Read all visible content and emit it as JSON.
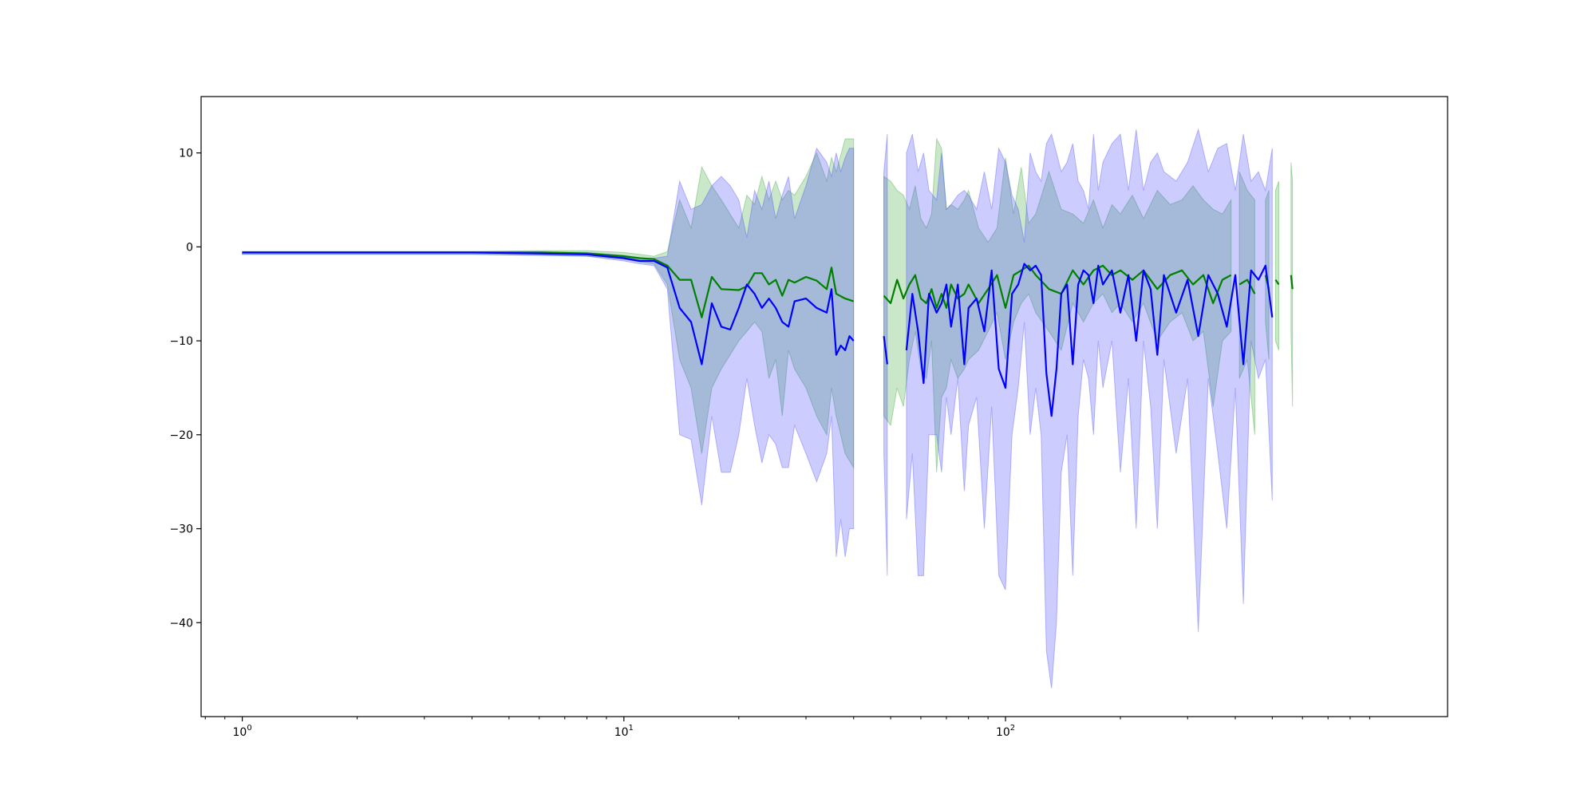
{
  "chart_data": {
    "type": "line",
    "title": "",
    "xlabel": "",
    "ylabel": "",
    "x_scale": "log",
    "xlim": [
      0.78,
      1440
    ],
    "ylim": [
      -50,
      16
    ],
    "grid": false,
    "legend": "none",
    "x_ticks": [
      {
        "value": 1,
        "base": "10",
        "exp": "0"
      },
      {
        "value": 10,
        "base": "10",
        "exp": "1"
      },
      {
        "value": 100,
        "base": "10",
        "exp": "2"
      }
    ],
    "y_ticks": [
      10,
      0,
      -10,
      -20,
      -30,
      -40
    ],
    "y_tick_labels": [
      "10",
      "0",
      "−10",
      "−20",
      "−30",
      "−40"
    ],
    "series": [
      {
        "color": "#008000",
        "fill_color": "#2ca02c",
        "fill_opacity": 0.25,
        "segments": [
          [
            [
              1,
              -0.6,
              -0.8,
              -0.5
            ],
            [
              2,
              -0.6,
              -0.8,
              -0.5
            ],
            [
              4,
              -0.6,
              -0.8,
              -0.5
            ],
            [
              6,
              -0.6,
              -0.9,
              -0.4
            ],
            [
              8,
              -0.7,
              -1.0,
              -0.4
            ],
            [
              10,
              -1.0,
              -1.3,
              -0.6
            ],
            [
              11,
              -1.2,
              -1.6,
              -0.8
            ],
            [
              12,
              -1.3,
              -1.8,
              -1.0
            ],
            [
              13,
              -2.0,
              -4.0,
              -0.5
            ],
            [
              14,
              -3.5,
              -12.0,
              5.0
            ],
            [
              15,
              -3.5,
              -15.0,
              2.0
            ],
            [
              16,
              -7.5,
              -22.0,
              8.5
            ],
            [
              17,
              -3.2,
              -15.0,
              6.5
            ],
            [
              18,
              -4.5,
              -13.0,
              5.0
            ],
            [
              20,
              -4.6,
              -10.0,
              2.0
            ],
            [
              21,
              -4.2,
              -9.0,
              5.5
            ],
            [
              22,
              -2.8,
              -8.0,
              4.5
            ],
            [
              23,
              -2.8,
              -9.0,
              7.5
            ],
            [
              24,
              -4.0,
              -14.0,
              5.0
            ],
            [
              25,
              -3.5,
              -12.0,
              7.0
            ],
            [
              26,
              -5.2,
              -18.0,
              5.0
            ],
            [
              27,
              -3.5,
              -11.0,
              6.0
            ],
            [
              28,
              -3.8,
              -13.0,
              5.5
            ],
            [
              30,
              -3.2,
              -15.0,
              7.5
            ],
            [
              32,
              -3.6,
              -18.0,
              10.0
            ],
            [
              34,
              -4.5,
              -20.0,
              7.0
            ],
            [
              35,
              -2.2,
              -15.0,
              9.5
            ],
            [
              36,
              -5.0,
              -18.0,
              8.0
            ],
            [
              38,
              -5.5,
              -22.0,
              11.5
            ],
            [
              40,
              -5.8,
              -23.5,
              11.5
            ]
          ],
          [
            [
              48,
              -5.2,
              -18.0,
              7.5
            ],
            [
              50,
              -6.0,
              -19.0,
              7.0
            ],
            [
              52,
              -3.5,
              -15.0,
              6.0
            ],
            [
              54,
              -5.5,
              -17.0,
              5.5
            ],
            [
              56,
              -4.0,
              -12.0,
              4.0
            ],
            [
              58,
              -3.0,
              -9.0,
              6.5
            ],
            [
              60,
              -5.5,
              -13.0,
              3.0
            ],
            [
              62,
              -6.0,
              -14.0,
              2.0
            ],
            [
              64,
              -4.5,
              -10.0,
              3.5
            ],
            [
              66,
              -6.5,
              -24.0,
              11.5
            ],
            [
              68,
              -5.0,
              -16.0,
              10.5
            ],
            [
              70,
              -6.5,
              -15.0,
              4.0
            ],
            [
              72,
              -4.0,
              -12.0,
              4.5
            ],
            [
              75,
              -5.5,
              -14.0,
              4.0
            ],
            [
              78,
              -5.0,
              -13.0,
              5.0
            ],
            [
              80,
              -4.0,
              -12.0,
              6.0
            ],
            [
              85,
              -6.0,
              -11.0,
              2.0
            ],
            [
              90,
              -4.5,
              -9.0,
              0.5
            ],
            [
              95,
              -3.0,
              -7.0,
              2.0
            ],
            [
              100,
              -6.5,
              -12.0,
              9.5
            ],
            [
              105,
              -3.0,
              -8.0,
              3.5
            ],
            [
              110,
              -2.5,
              -6.0,
              8.5
            ],
            [
              115,
              -2.0,
              -5.0,
              2.5
            ],
            [
              120,
              -3.0,
              -7.0,
              3.5
            ],
            [
              130,
              -4.5,
              -9.0,
              8.0
            ],
            [
              140,
              -5.0,
              -11.0,
              4.0
            ],
            [
              150,
              -2.5,
              -6.0,
              3.5
            ],
            [
              160,
              -4.0,
              -8.0,
              2.5
            ],
            [
              170,
              -2.5,
              -6.0,
              5.0
            ],
            [
              180,
              -2.0,
              -5.0,
              2.0
            ],
            [
              190,
              -3.0,
              -7.0,
              4.5
            ],
            [
              200,
              -2.5,
              -6.0,
              3.5
            ],
            [
              215,
              -3.5,
              -8.0,
              5.5
            ],
            [
              230,
              -2.5,
              -6.0,
              3.0
            ],
            [
              250,
              -4.5,
              -10.0,
              6.0
            ],
            [
              270,
              -3.0,
              -8.0,
              4.5
            ],
            [
              290,
              -2.5,
              -7.0,
              5.0
            ],
            [
              310,
              -4.0,
              -10.0,
              6.5
            ],
            [
              330,
              -3.0,
              -9.0,
              5.0
            ],
            [
              350,
              -6.0,
              -17.0,
              4.0
            ],
            [
              370,
              -3.5,
              -10.0,
              3.5
            ],
            [
              390,
              -3.0,
              -9.0,
              5.0
            ]
          ],
          [
            [
              410,
              -4.0,
              -14.0,
              8.0
            ],
            [
              430,
              -3.5,
              -12.0,
              6.0
            ],
            [
              450,
              -5.0,
              -20.0,
              5.0
            ]
          ],
          [
            [
              480,
              -3.0,
              -8.0,
              5.0
            ],
            [
              490,
              -4.5,
              -12.0,
              6.0
            ]
          ],
          [
            [
              510,
              -3.5,
              -10.0,
              6.0
            ],
            [
              520,
              -4.0,
              -11.0,
              7.0
            ]
          ],
          [
            [
              560,
              -3.0,
              -9.0,
              9.0
            ],
            [
              565,
              -4.5,
              -17.0,
              7.0
            ]
          ]
        ]
      },
      {
        "color": "#0000ff",
        "fill_color": "#4444ff",
        "fill_opacity": 0.27,
        "segments": [
          [
            [
              1,
              -0.6,
              -0.8,
              -0.5
            ],
            [
              2,
              -0.6,
              -0.8,
              -0.5
            ],
            [
              4,
              -0.6,
              -0.8,
              -0.5
            ],
            [
              6,
              -0.7,
              -0.9,
              -0.5
            ],
            [
              8,
              -0.8,
              -1.0,
              -0.6
            ],
            [
              10,
              -1.2,
              -1.5,
              -0.9
            ],
            [
              11,
              -1.5,
              -1.8,
              -1.2
            ],
            [
              12,
              -1.5,
              -2.0,
              -1.2
            ],
            [
              13,
              -2.2,
              -4.5,
              -1.0
            ],
            [
              14,
              -6.5,
              -20.0,
              7.0
            ],
            [
              15,
              -8.0,
              -20.5,
              4.0
            ],
            [
              16,
              -12.5,
              -27.5,
              4.5
            ],
            [
              17,
              -6.0,
              -18.0,
              6.5
            ],
            [
              18,
              -8.5,
              -24.0,
              7.5
            ],
            [
              19,
              -8.8,
              -24.0,
              6.5
            ],
            [
              20,
              -6.5,
              -20.0,
              5.0
            ],
            [
              21,
              -4.0,
              -14.0,
              1.0
            ],
            [
              22,
              -5.0,
              -19.0,
              6.0
            ],
            [
              23,
              -6.5,
              -23.0,
              4.0
            ],
            [
              24,
              -5.5,
              -20.0,
              7.0
            ],
            [
              25,
              -6.5,
              -21.0,
              3.0
            ],
            [
              26,
              -8.0,
              -23.5,
              5.5
            ],
            [
              27,
              -8.5,
              -23.5,
              7.5
            ],
            [
              28,
              -5.8,
              -19.0,
              3.0
            ],
            [
              30,
              -5.5,
              -22.0,
              6.5
            ],
            [
              32,
              -6.5,
              -25.0,
              10.5
            ],
            [
              34,
              -7.0,
              -22.0,
              9.0
            ],
            [
              35,
              -4.5,
              -18.0,
              7.5
            ],
            [
              36,
              -11.5,
              -33.0,
              10.0
            ],
            [
              37,
              -10.5,
              -29.0,
              8.0
            ],
            [
              38,
              -11.0,
              -33.0,
              9.5
            ],
            [
              39,
              -9.5,
              -30.0,
              10.5
            ],
            [
              40,
              -10.0,
              -30.0,
              10.5
            ]
          ],
          [
            [
              48,
              -9.5,
              -22.0,
              8.0
            ],
            [
              49,
              -12.5,
              -35.0,
              12.0
            ]
          ],
          [
            [
              55,
              -11.0,
              -29.0,
              10.0
            ],
            [
              57,
              -5.0,
              -22.0,
              12.0
            ],
            [
              59,
              -9.0,
              -35.0,
              8.0
            ],
            [
              61,
              -14.5,
              -35.0,
              10.0
            ],
            [
              63,
              -5.0,
              -20.0,
              6.0
            ],
            [
              66,
              -7.0,
              -20.0,
              5.0
            ],
            [
              68,
              -6.0,
              -24.0,
              10.0
            ],
            [
              70,
              -4.0,
              -16.0,
              4.0
            ],
            [
              72,
              -8.5,
              -20.0,
              4.5
            ],
            [
              75,
              -4.0,
              -14.0,
              5.5
            ],
            [
              78,
              -12.5,
              -26.0,
              6.0
            ],
            [
              80,
              -6.5,
              -19.0,
              5.5
            ],
            [
              84,
              -5.5,
              -16.0,
              4.0
            ],
            [
              88,
              -9.0,
              -30.0,
              8.0
            ],
            [
              92,
              -2.5,
              -17.0,
              4.0
            ],
            [
              96,
              -13.0,
              -35.0,
              10.5
            ],
            [
              100,
              -15.0,
              -36.5,
              9.0
            ],
            [
              104,
              -5.0,
              -20.0,
              5.5
            ],
            [
              108,
              -4.0,
              -15.0,
              4.0
            ],
            [
              112,
              -1.8,
              -8.0,
              0.5
            ],
            [
              116,
              -2.5,
              -20.0,
              10.0
            ],
            [
              120,
              -2.0,
              -15.0,
              8.0
            ],
            [
              124,
              -3.0,
              -20.0,
              7.0
            ],
            [
              128,
              -13.5,
              -43.0,
              11.0
            ],
            [
              132,
              -18.0,
              -47.0,
              12.0
            ],
            [
              136,
              -13.0,
              -40.0,
              10.0
            ],
            [
              140,
              -5.0,
              -24.0,
              8.0
            ],
            [
              145,
              -4.0,
              -20.0,
              9.0
            ],
            [
              150,
              -12.5,
              -35.0,
              11.0
            ],
            [
              155,
              -4.0,
              -18.0,
              7.0
            ],
            [
              160,
              -2.5,
              -12.0,
              6.0
            ],
            [
              165,
              -3.0,
              -14.0,
              4.0
            ],
            [
              170,
              -6.0,
              -20.0,
              12.0
            ],
            [
              175,
              -2.0,
              -10.0,
              6.0
            ],
            [
              180,
              -4.0,
              -15.0,
              9.0
            ],
            [
              190,
              -2.5,
              -10.0,
              11.0
            ],
            [
              200,
              -7.0,
              -24.0,
              12.0
            ],
            [
              210,
              -3.0,
              -14.0,
              6.0
            ],
            [
              220,
              -10.0,
              -30.0,
              12.5
            ],
            [
              230,
              -2.5,
              -10.0,
              6.0
            ],
            [
              240,
              -4.5,
              -17.0,
              9.0
            ],
            [
              250,
              -11.5,
              -30.0,
              10.0
            ],
            [
              260,
              -3.0,
              -12.0,
              8.0
            ],
            [
              280,
              -7.0,
              -22.0,
              7.0
            ],
            [
              300,
              -3.5,
              -14.0,
              9.0
            ],
            [
              320,
              -9.5,
              -41.0,
              12.5
            ],
            [
              340,
              -3.0,
              -14.0,
              8.0
            ],
            [
              360,
              -5.0,
              -22.0,
              10.5
            ],
            [
              380,
              -8.5,
              -30.0,
              11.0
            ],
            [
              400,
              -3.0,
              -15.0,
              6.0
            ],
            [
              420,
              -12.5,
              -38.0,
              12.0
            ],
            [
              440,
              -2.5,
              -10.0,
              7.0
            ],
            [
              460,
              -3.5,
              -14.0,
              8.0
            ],
            [
              480,
              -2.0,
              -12.0,
              6.0
            ],
            [
              500,
              -7.5,
              -27.0,
              10.5
            ]
          ]
        ]
      }
    ]
  }
}
